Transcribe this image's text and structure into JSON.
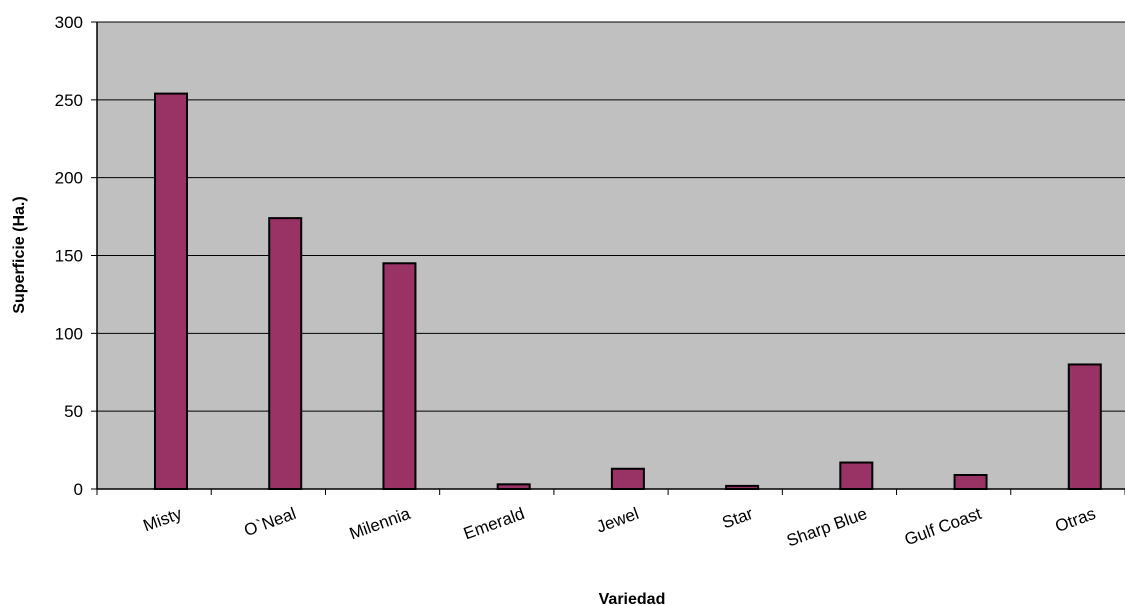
{
  "chart_data": {
    "type": "bar",
    "title": "",
    "xlabel": "Variedad",
    "ylabel": "Superficie (Ha.)",
    "ylim": [
      0,
      300
    ],
    "yticks": [
      0,
      50,
      100,
      150,
      200,
      250,
      300
    ],
    "categories": [
      "Misty",
      "O`Neal",
      "Milennia",
      "Emerald",
      "Jewel",
      "Star",
      "Sharp Blue",
      "Gulf Coast",
      "Otras"
    ],
    "values": [
      254,
      174,
      145,
      3,
      13,
      2,
      17,
      9,
      80
    ],
    "grid": true,
    "legend": "none",
    "colors": {
      "bar": "#993366",
      "plot_background": "#c0c0c0",
      "gridline": "#000000"
    }
  }
}
